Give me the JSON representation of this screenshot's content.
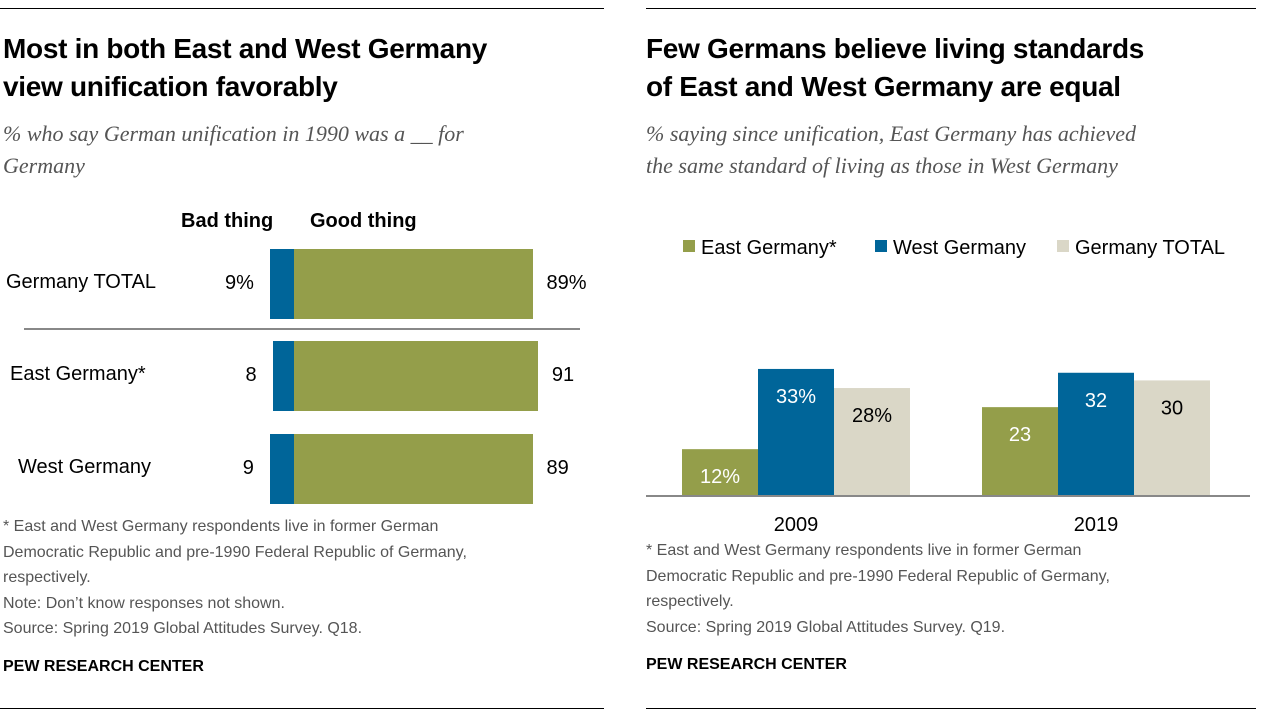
{
  "colors": {
    "good": "#949E4A",
    "bad": "#006599",
    "east": "#949E4A",
    "west": "#006599",
    "total": "#DAD7C7"
  },
  "left": {
    "title_line1": "Most in both East and West Germany",
    "title_line2": "view unification favorably",
    "subtitle_line1": "% who say German unification in 1990 was a __ for",
    "subtitle_line2": "Germany",
    "notes": [
      "* East and West Germany respondents live in former German",
      "Democratic Republic and pre-1990 Federal Republic of Germany,",
      "respectively.",
      "Note: Don’t know responses not shown.",
      "Source: Spring 2019 Global Attitudes Survey. Q18."
    ],
    "brand": "PEW RESEARCH CENTER"
  },
  "right": {
    "title_line1": "Few Germans believe living standards",
    "title_line2": "of East and West Germany are equal",
    "subtitle_line1": "% saying since unification, East Germany has achieved",
    "subtitle_line2": "the same standard of living as those in West Germany",
    "notes": [
      "* East and West Germany respondents live in former German",
      "Democratic Republic and pre-1990 Federal Republic of Germany,",
      "respectively.",
      "Source: Spring 2019 Global Attitudes Survey. Q19."
    ],
    "brand": "PEW RESEARCH CENTER"
  },
  "chart_data": [
    {
      "type": "bar",
      "orientation": "horizontal",
      "stacked": "diverging",
      "categories": [
        "Germany TOTAL",
        "East Germany*",
        "West Germany"
      ],
      "series": [
        {
          "name": "Bad thing",
          "values": [
            9,
            8,
            9
          ],
          "labels": [
            "9%",
            "8",
            "9"
          ]
        },
        {
          "name": "Good thing",
          "values": [
            89,
            91,
            89
          ],
          "labels": [
            "89%",
            "91",
            "89"
          ]
        }
      ]
    },
    {
      "type": "bar",
      "orientation": "vertical",
      "categories": [
        "2009",
        "2019"
      ],
      "legend": "top",
      "series": [
        {
          "name": "East Germany*",
          "values": [
            12,
            23
          ],
          "labels": [
            "12%",
            "23"
          ]
        },
        {
          "name": "West Germany",
          "values": [
            33,
            32
          ],
          "labels": [
            "33%",
            "32"
          ]
        },
        {
          "name": "Germany TOTAL",
          "values": [
            28,
            30
          ],
          "labels": [
            "28%",
            "30"
          ]
        }
      ]
    }
  ]
}
